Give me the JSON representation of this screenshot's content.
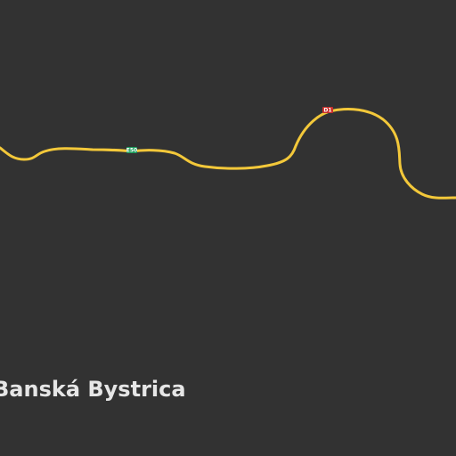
{
  "map": {
    "background_color": "#323232",
    "road_color": "#f3c83a",
    "roads": [
      {
        "id": "main-road",
        "shields": [
          {
            "label": "E50",
            "shield_color": "#1a9b5a",
            "text_color": "#ffffff"
          },
          {
            "label": "D1",
            "shield_color": "#c9302c",
            "text_color": "#ffffff"
          }
        ]
      }
    ],
    "places": [
      {
        "name": "Banská Bystrica"
      }
    ]
  }
}
